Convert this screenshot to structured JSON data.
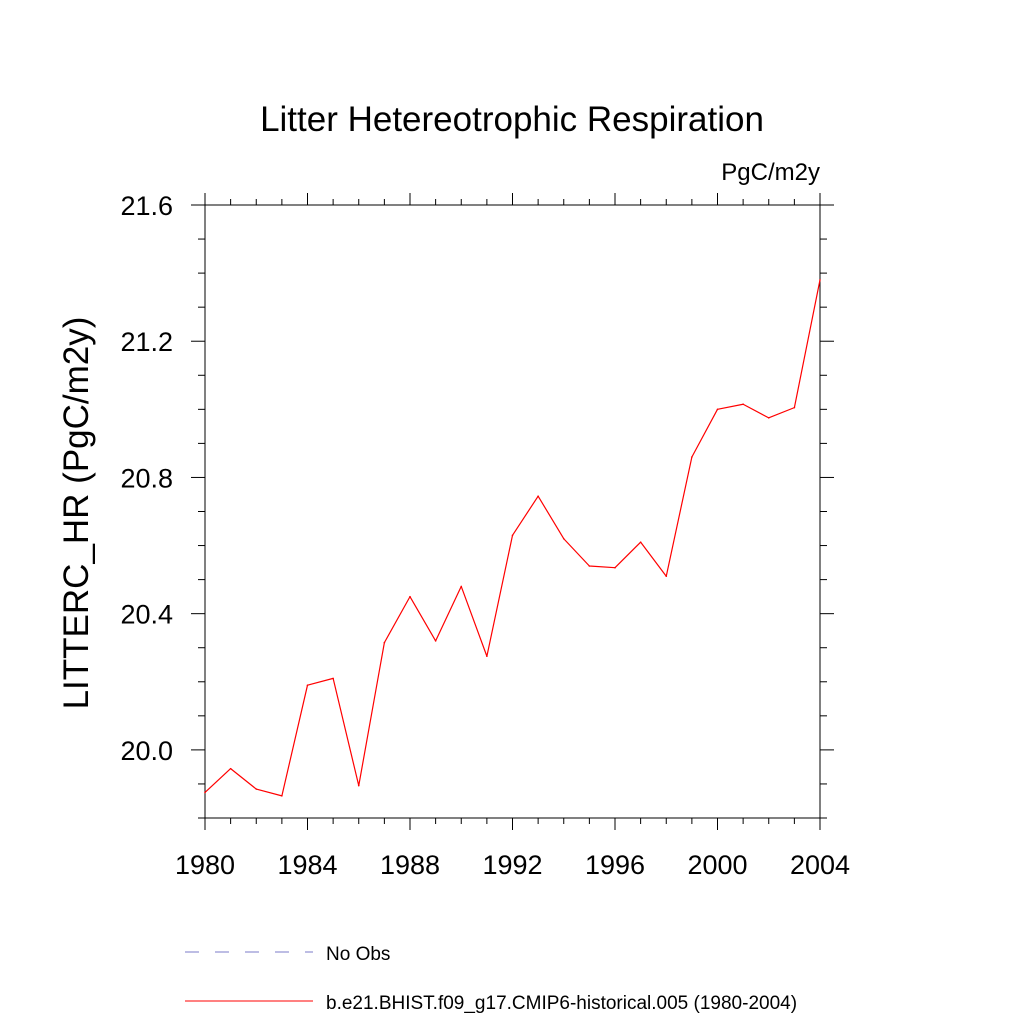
{
  "chart_data": {
    "type": "line",
    "title": "Litter Hetereotrophic Respiration",
    "units": "PgC/m2y",
    "xlabel": "",
    "ylabel": "LITTERC_HR  (PgC/m2y)",
    "xlim": [
      1980,
      2004
    ],
    "ylim": [
      19.8,
      21.6
    ],
    "grid": false,
    "legend_position": "bottom",
    "x_ticks": [
      1980,
      1984,
      1988,
      1992,
      1996,
      2000,
      2004
    ],
    "x_tick_labels": [
      "1980",
      "1984",
      "1988",
      "1992",
      "1996",
      "2000",
      "2004"
    ],
    "y_ticks": [
      20.0,
      20.4,
      20.8,
      21.2,
      21.6
    ],
    "y_tick_labels": [
      "20.0",
      "20.4",
      "20.8",
      "21.2",
      "21.6"
    ],
    "x": [
      1980,
      1981,
      1982,
      1983,
      1984,
      1985,
      1986,
      1987,
      1988,
      1989,
      1990,
      1991,
      1992,
      1993,
      1994,
      1995,
      1996,
      1997,
      1998,
      1999,
      2000,
      2001,
      2002,
      2003,
      2004
    ],
    "series": [
      {
        "name": "b.e21.BHIST.f09_g17.CMIP6-historical.005 (1980-2004)",
        "color": "#ff0000",
        "style": "solid",
        "values": [
          19.875,
          19.945,
          19.885,
          19.865,
          20.19,
          20.21,
          19.895,
          20.315,
          20.45,
          20.32,
          20.48,
          20.275,
          20.63,
          20.745,
          20.62,
          20.54,
          20.535,
          20.61,
          20.51,
          20.86,
          21.0,
          21.015,
          20.975,
          21.005,
          21.38
        ]
      }
    ],
    "legend": [
      {
        "label": "No Obs",
        "color": "#7b7bc8",
        "style": "dashed"
      },
      {
        "label": "b.e21.BHIST.f09_g17.CMIP6-historical.005 (1980-2004)",
        "color": "#ff0000",
        "style": "solid"
      }
    ]
  }
}
